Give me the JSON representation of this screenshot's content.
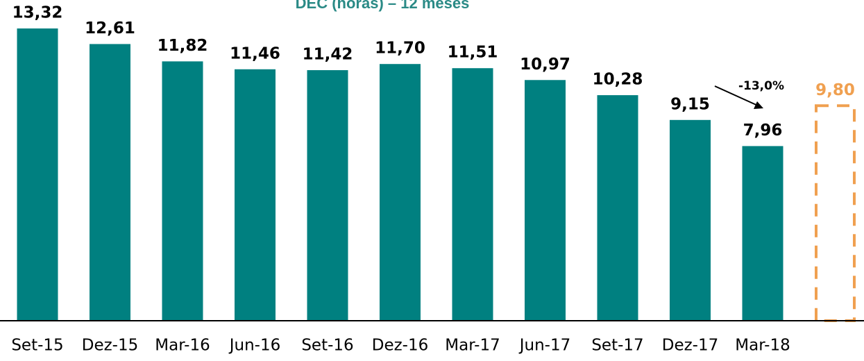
{
  "chart_data": {
    "type": "bar",
    "title": "DEC (horas) – 12 meses",
    "categories": [
      "Set-15",
      "Dez-15",
      "Mar-16",
      "Jun-16",
      "Set-16",
      "Dez-16",
      "Mar-17",
      "Jun-17",
      "Set-17",
      "Dez-17",
      "Mar-18",
      null
    ],
    "values": [
      13.32,
      12.61,
      11.82,
      11.46,
      11.42,
      11.7,
      11.51,
      10.97,
      10.28,
      9.15,
      7.96,
      9.8
    ],
    "value_labels": [
      "13,32",
      "12,61",
      "11,82",
      "11,46",
      "11,42",
      "11,70",
      "11,51",
      "10,97",
      "10,28",
      "9,15",
      "7,96",
      "9,80"
    ],
    "colors": [
      "#008080",
      "#008080",
      "#008080",
      "#008080",
      "#008080",
      "#008080",
      "#008080",
      "#008080",
      "#008080",
      "#008080",
      "#008080",
      "#f0a050"
    ],
    "dashed": [
      false,
      false,
      false,
      false,
      false,
      false,
      false,
      false,
      false,
      false,
      false,
      true
    ],
    "annotation": "-13,0%"
  }
}
